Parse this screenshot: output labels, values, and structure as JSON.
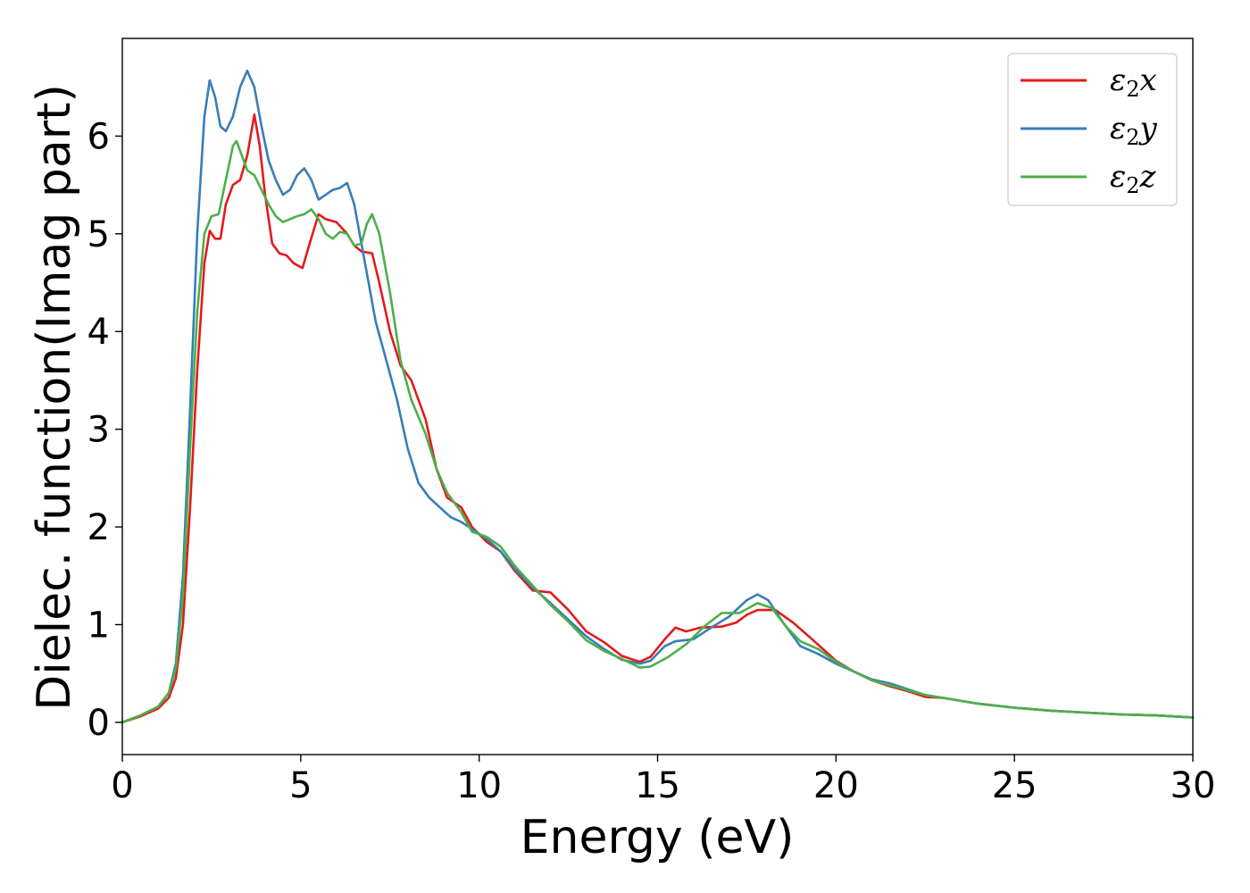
{
  "chart_data": {
    "type": "line",
    "xlabel": "Energy (eV)",
    "ylabel": "Dielec. function(Imag part)",
    "xlim": [
      0,
      30
    ],
    "ylim": [
      -0.33,
      7.0
    ],
    "xticks": [
      0,
      5,
      10,
      15,
      20,
      25,
      30
    ],
    "xtick_labels": [
      "0",
      "5",
      "10",
      "15",
      "20",
      "25",
      "30"
    ],
    "yticks": [
      0,
      1,
      2,
      3,
      4,
      5,
      6
    ],
    "ytick_labels": [
      "0",
      "1",
      "2",
      "3",
      "4",
      "5",
      "6"
    ],
    "grid": false,
    "legend_position": "top-right",
    "series": [
      {
        "name": "ε2x",
        "color": "#e41a1c",
        "points": [
          [
            0,
            0
          ],
          [
            0.5,
            0.06
          ],
          [
            1,
            0.14
          ],
          [
            1.3,
            0.25
          ],
          [
            1.5,
            0.45
          ],
          [
            1.7,
            1.0
          ],
          [
            1.9,
            2.2
          ],
          [
            2.1,
            3.6
          ],
          [
            2.3,
            4.7
          ],
          [
            2.45,
            5.03
          ],
          [
            2.6,
            4.95
          ],
          [
            2.75,
            4.95
          ],
          [
            2.9,
            5.3
          ],
          [
            3.1,
            5.5
          ],
          [
            3.3,
            5.55
          ],
          [
            3.5,
            5.8
          ],
          [
            3.7,
            6.22
          ],
          [
            3.85,
            5.9
          ],
          [
            4.0,
            5.4
          ],
          [
            4.2,
            4.9
          ],
          [
            4.4,
            4.8
          ],
          [
            4.6,
            4.78
          ],
          [
            4.8,
            4.7
          ],
          [
            5.05,
            4.65
          ],
          [
            5.25,
            4.9
          ],
          [
            5.5,
            5.2
          ],
          [
            5.7,
            5.15
          ],
          [
            6.0,
            5.12
          ],
          [
            6.3,
            5.0
          ],
          [
            6.5,
            4.88
          ],
          [
            6.7,
            4.82
          ],
          [
            7.0,
            4.8
          ],
          [
            7.2,
            4.5
          ],
          [
            7.5,
            4.0
          ],
          [
            7.8,
            3.65
          ],
          [
            8.1,
            3.5
          ],
          [
            8.5,
            3.1
          ],
          [
            8.8,
            2.6
          ],
          [
            9.1,
            2.3
          ],
          [
            9.5,
            2.2
          ],
          [
            9.8,
            2.0
          ],
          [
            10.2,
            1.85
          ],
          [
            10.6,
            1.75
          ],
          [
            11.0,
            1.55
          ],
          [
            11.5,
            1.35
          ],
          [
            12.0,
            1.33
          ],
          [
            12.5,
            1.15
          ],
          [
            13.0,
            0.93
          ],
          [
            13.5,
            0.82
          ],
          [
            14.0,
            0.68
          ],
          [
            14.5,
            0.62
          ],
          [
            14.8,
            0.67
          ],
          [
            15.2,
            0.85
          ],
          [
            15.5,
            0.97
          ],
          [
            15.8,
            0.93
          ],
          [
            16.2,
            0.97
          ],
          [
            16.8,
            0.98
          ],
          [
            17.2,
            1.02
          ],
          [
            17.5,
            1.1
          ],
          [
            17.8,
            1.15
          ],
          [
            18.3,
            1.15
          ],
          [
            18.8,
            1.02
          ],
          [
            19.3,
            0.86
          ],
          [
            20.0,
            0.63
          ],
          [
            20.5,
            0.52
          ],
          [
            21.0,
            0.43
          ],
          [
            21.5,
            0.37
          ],
          [
            22.0,
            0.32
          ],
          [
            22.5,
            0.26
          ],
          [
            23.0,
            0.25
          ],
          [
            24.0,
            0.19
          ],
          [
            25.0,
            0.15
          ],
          [
            26.0,
            0.12
          ],
          [
            27.0,
            0.1
          ],
          [
            28.0,
            0.08
          ],
          [
            29.0,
            0.07
          ],
          [
            30.0,
            0.05
          ]
        ]
      },
      {
        "name": "ε2y",
        "color": "#377eb8",
        "points": [
          [
            0,
            0
          ],
          [
            0.5,
            0.07
          ],
          [
            1,
            0.16
          ],
          [
            1.3,
            0.3
          ],
          [
            1.5,
            0.6
          ],
          [
            1.7,
            1.5
          ],
          [
            1.9,
            3.2
          ],
          [
            2.1,
            5.0
          ],
          [
            2.3,
            6.2
          ],
          [
            2.45,
            6.57
          ],
          [
            2.6,
            6.4
          ],
          [
            2.75,
            6.1
          ],
          [
            2.9,
            6.05
          ],
          [
            3.1,
            6.2
          ],
          [
            3.3,
            6.5
          ],
          [
            3.5,
            6.67
          ],
          [
            3.7,
            6.5
          ],
          [
            3.9,
            6.1
          ],
          [
            4.1,
            5.75
          ],
          [
            4.3,
            5.55
          ],
          [
            4.5,
            5.4
          ],
          [
            4.7,
            5.45
          ],
          [
            4.9,
            5.6
          ],
          [
            5.1,
            5.67
          ],
          [
            5.3,
            5.55
          ],
          [
            5.5,
            5.35
          ],
          [
            5.7,
            5.4
          ],
          [
            5.9,
            5.45
          ],
          [
            6.1,
            5.47
          ],
          [
            6.3,
            5.52
          ],
          [
            6.5,
            5.3
          ],
          [
            6.7,
            4.9
          ],
          [
            6.9,
            4.5
          ],
          [
            7.1,
            4.1
          ],
          [
            7.4,
            3.7
          ],
          [
            7.7,
            3.3
          ],
          [
            8.0,
            2.8
          ],
          [
            8.3,
            2.45
          ],
          [
            8.6,
            2.3
          ],
          [
            8.9,
            2.2
          ],
          [
            9.2,
            2.1
          ],
          [
            9.5,
            2.05
          ],
          [
            9.8,
            1.98
          ],
          [
            10.2,
            1.88
          ],
          [
            10.6,
            1.75
          ],
          [
            11.0,
            1.57
          ],
          [
            11.5,
            1.38
          ],
          [
            12.0,
            1.22
          ],
          [
            12.5,
            1.05
          ],
          [
            13.0,
            0.88
          ],
          [
            13.5,
            0.75
          ],
          [
            14.0,
            0.64
          ],
          [
            14.5,
            0.6
          ],
          [
            14.8,
            0.63
          ],
          [
            15.2,
            0.78
          ],
          [
            15.5,
            0.83
          ],
          [
            16.0,
            0.85
          ],
          [
            16.5,
            0.97
          ],
          [
            17.0,
            1.08
          ],
          [
            17.5,
            1.25
          ],
          [
            17.8,
            1.31
          ],
          [
            18.1,
            1.25
          ],
          [
            18.5,
            1.03
          ],
          [
            19.0,
            0.78
          ],
          [
            19.5,
            0.7
          ],
          [
            20.0,
            0.6
          ],
          [
            20.5,
            0.52
          ],
          [
            21.0,
            0.44
          ],
          [
            21.5,
            0.4
          ],
          [
            22.0,
            0.34
          ],
          [
            22.5,
            0.28
          ],
          [
            23.0,
            0.25
          ],
          [
            24.0,
            0.19
          ],
          [
            25.0,
            0.15
          ],
          [
            26.0,
            0.12
          ],
          [
            27.0,
            0.1
          ],
          [
            28.0,
            0.08
          ],
          [
            29.0,
            0.07
          ],
          [
            30.0,
            0.05
          ]
        ]
      },
      {
        "name": "ε2z",
        "color": "#4daf4a",
        "points": [
          [
            0,
            0
          ],
          [
            0.5,
            0.07
          ],
          [
            1,
            0.16
          ],
          [
            1.3,
            0.3
          ],
          [
            1.5,
            0.55
          ],
          [
            1.7,
            1.3
          ],
          [
            1.9,
            2.8
          ],
          [
            2.1,
            4.2
          ],
          [
            2.3,
            5.0
          ],
          [
            2.5,
            5.18
          ],
          [
            2.7,
            5.2
          ],
          [
            2.9,
            5.55
          ],
          [
            3.1,
            5.9
          ],
          [
            3.2,
            5.95
          ],
          [
            3.35,
            5.8
          ],
          [
            3.5,
            5.65
          ],
          [
            3.7,
            5.6
          ],
          [
            3.9,
            5.45
          ],
          [
            4.1,
            5.3
          ],
          [
            4.3,
            5.18
          ],
          [
            4.5,
            5.12
          ],
          [
            4.7,
            5.15
          ],
          [
            4.9,
            5.18
          ],
          [
            5.1,
            5.2
          ],
          [
            5.3,
            5.25
          ],
          [
            5.5,
            5.15
          ],
          [
            5.7,
            5.0
          ],
          [
            5.9,
            4.95
          ],
          [
            6.1,
            5.02
          ],
          [
            6.3,
            5.0
          ],
          [
            6.5,
            4.88
          ],
          [
            6.7,
            4.9
          ],
          [
            6.85,
            5.1
          ],
          [
            7.0,
            5.2
          ],
          [
            7.2,
            5.0
          ],
          [
            7.5,
            4.4
          ],
          [
            7.8,
            3.7
          ],
          [
            8.1,
            3.3
          ],
          [
            8.5,
            2.95
          ],
          [
            8.8,
            2.6
          ],
          [
            9.1,
            2.35
          ],
          [
            9.5,
            2.15
          ],
          [
            9.8,
            1.95
          ],
          [
            10.2,
            1.9
          ],
          [
            10.6,
            1.8
          ],
          [
            11.0,
            1.6
          ],
          [
            11.5,
            1.4
          ],
          [
            12.0,
            1.2
          ],
          [
            12.5,
            1.03
          ],
          [
            13.0,
            0.84
          ],
          [
            13.5,
            0.73
          ],
          [
            14.0,
            0.65
          ],
          [
            14.5,
            0.56
          ],
          [
            14.8,
            0.57
          ],
          [
            15.3,
            0.67
          ],
          [
            15.8,
            0.8
          ],
          [
            16.3,
            0.98
          ],
          [
            16.8,
            1.12
          ],
          [
            17.3,
            1.12
          ],
          [
            17.8,
            1.22
          ],
          [
            18.2,
            1.17
          ],
          [
            18.6,
            0.98
          ],
          [
            19.0,
            0.83
          ],
          [
            19.5,
            0.75
          ],
          [
            20.0,
            0.62
          ],
          [
            20.5,
            0.52
          ],
          [
            21.0,
            0.43
          ],
          [
            21.5,
            0.38
          ],
          [
            22.0,
            0.33
          ],
          [
            22.5,
            0.28
          ],
          [
            23.0,
            0.25
          ],
          [
            24.0,
            0.19
          ],
          [
            25.0,
            0.15
          ],
          [
            26.0,
            0.12
          ],
          [
            27.0,
            0.1
          ],
          [
            28.0,
            0.08
          ],
          [
            29.0,
            0.07
          ],
          [
            30.0,
            0.05
          ]
        ]
      }
    ]
  }
}
